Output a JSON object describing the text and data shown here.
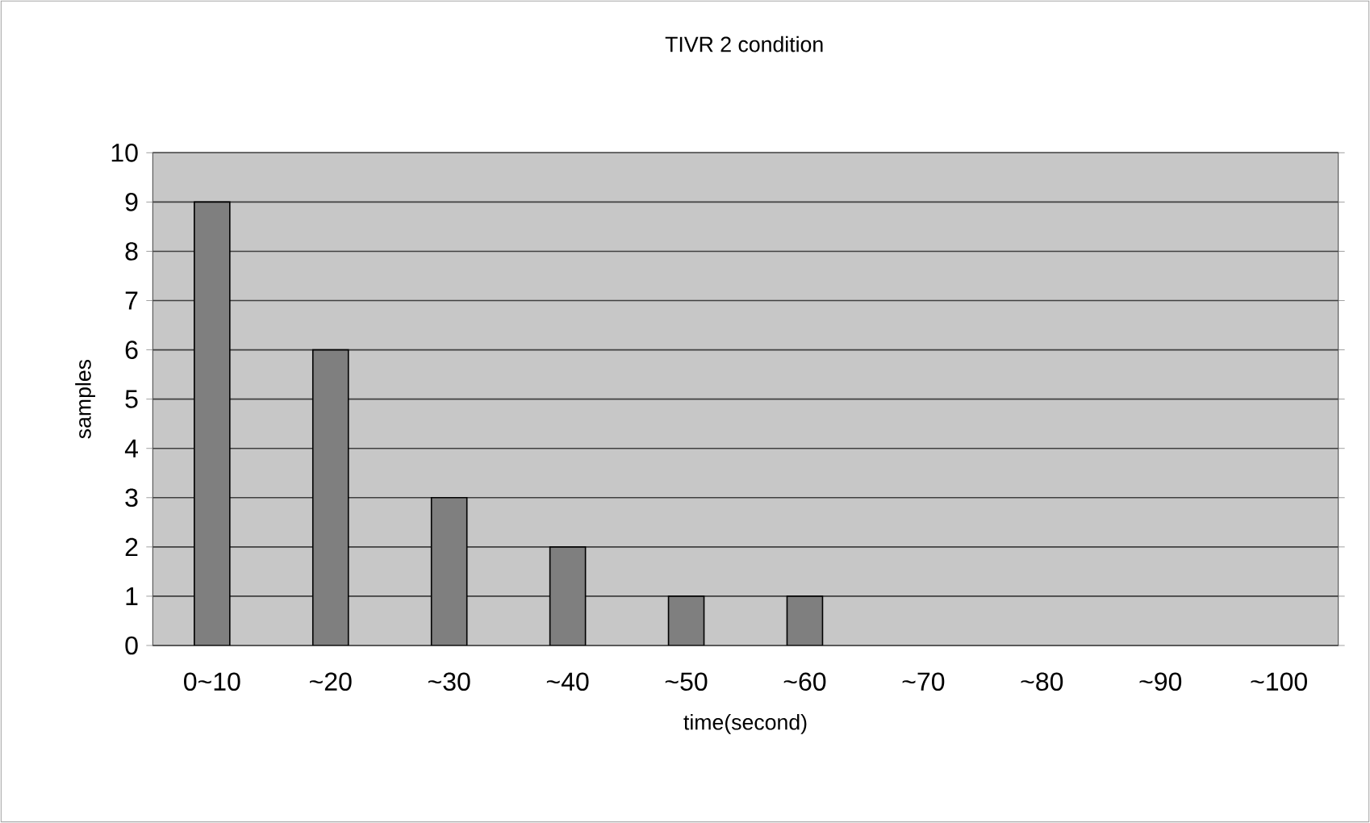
{
  "chart_data": {
    "type": "bar",
    "title": "TIVR 2 condition",
    "xlabel": "time(second)",
    "ylabel": "samples",
    "categories": [
      "0~10",
      "~20",
      "~30",
      "~40",
      "~50",
      "~60",
      "~70",
      "~80",
      "~90",
      "~100"
    ],
    "values": [
      9,
      6,
      3,
      2,
      1,
      1,
      0,
      0,
      0,
      0
    ],
    "color": "#7f7f7f",
    "ylim": [
      0,
      10
    ],
    "yticks": [
      0,
      1,
      2,
      3,
      4,
      5,
      6,
      7,
      8,
      9,
      10
    ],
    "grid": "y"
  }
}
